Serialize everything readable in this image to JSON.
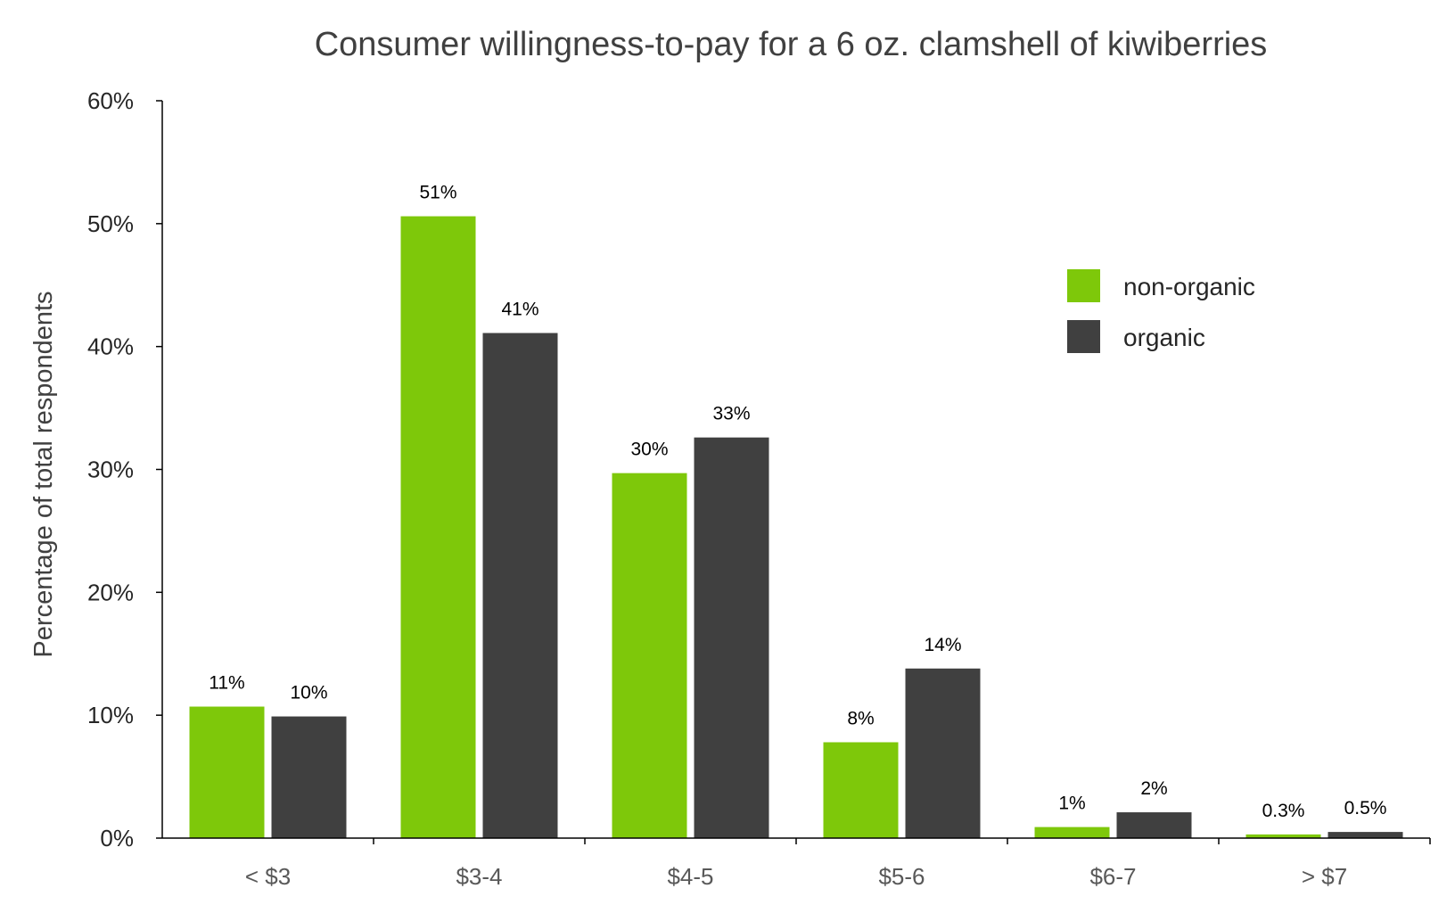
{
  "chart_data": {
    "type": "bar",
    "title": "Consumer willingness-to-pay for a 6 oz. clamshell of kiwiberries",
    "xlabel": "",
    "ylabel": "Percentage of total respondents",
    "ylim": [
      0,
      60
    ],
    "yticks": [
      "0%",
      "10%",
      "20%",
      "30%",
      "40%",
      "50%",
      "60%"
    ],
    "categories": [
      "< $3",
      "$3-4",
      "$4-5",
      "$5-6",
      "$6-7",
      "> $7"
    ],
    "series": [
      {
        "name": "non-organic",
        "color": "#7ec80a",
        "values": [
          10.7,
          50.6,
          29.7,
          7.8,
          0.9,
          0.3
        ],
        "labels": [
          "11%",
          "51%",
          "30%",
          "8%",
          "1%",
          "0.3%"
        ]
      },
      {
        "name": "organic",
        "color": "#404040",
        "values": [
          9.9,
          41.1,
          32.6,
          13.8,
          2.1,
          0.5
        ],
        "labels": [
          "10%",
          "41%",
          "33%",
          "14%",
          "2%",
          "0.5%"
        ]
      }
    ],
    "grid": false,
    "legend_position": "top-right"
  }
}
